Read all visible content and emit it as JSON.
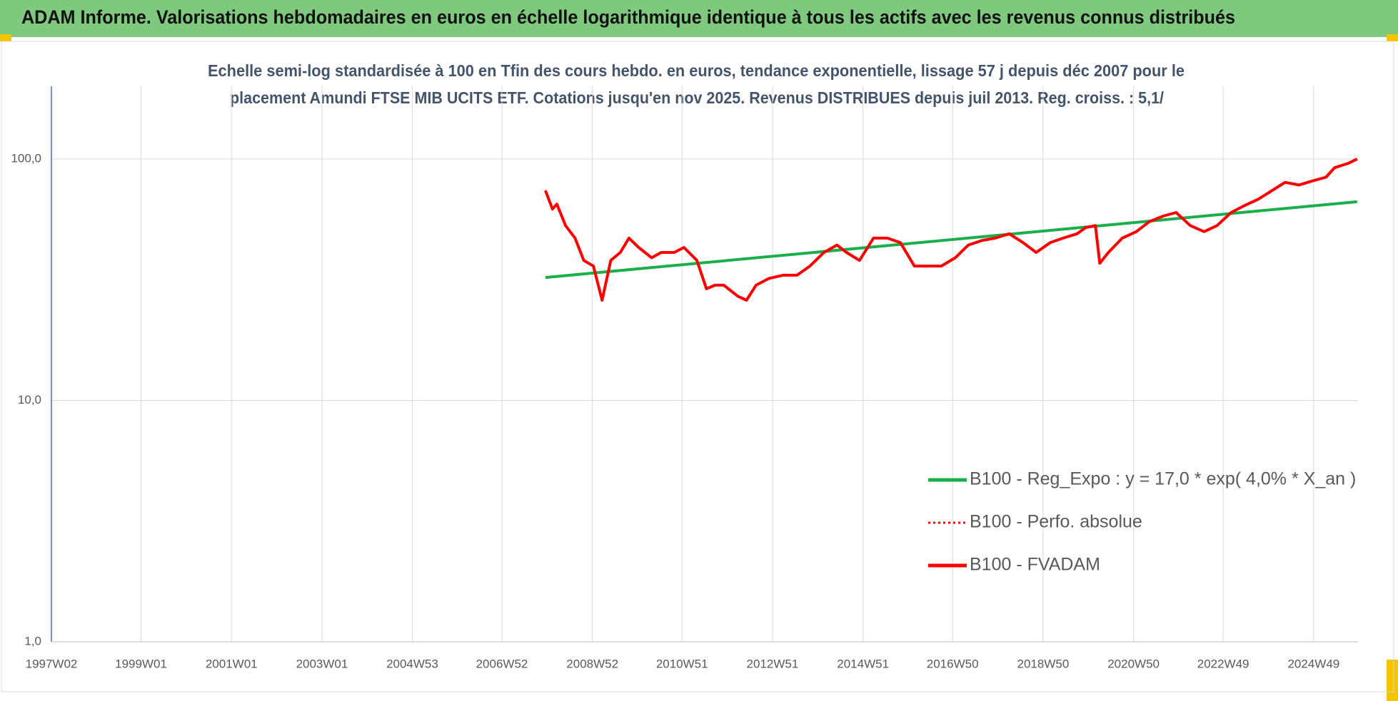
{
  "chart_data": {
    "type": "line",
    "title": "ADAM Informe. Valorisations hebdomadaires en euros en échelle logarithmique identique à tous les actifs avec les revenus connus distribués",
    "subtitle": [
      "Echelle semi-log standardisée à 100 en Tfin des cours hebdo. en euros, tendance exponentielle, lissage 57 j depuis déc 2007 pour le",
      "placement Amundi FTSE MIB UCITS ETF. Cotations jusqu'en nov 2025. Revenus DISTRIBUES depuis juil 2013. Reg. croiss. : 5,1/"
    ],
    "log_scale": true,
    "grid": true,
    "legend_position": "right",
    "xlim": [
      "1997W02",
      "2025W48"
    ],
    "xticks": [
      "1997W02",
      "1999W01",
      "2001W01",
      "2003W01",
      "2004W53",
      "2006W52",
      "2008W52",
      "2010W51",
      "2012W51",
      "2014W51",
      "2016W50",
      "2018W50",
      "2020W50",
      "2022W49",
      "2024W49"
    ],
    "ylim": [
      1,
      200
    ],
    "yticks": [
      {
        "value": 1,
        "label": "1,0"
      },
      {
        "value": 10,
        "label": "10,0"
      },
      {
        "value": 100,
        "label": "100,0"
      }
    ],
    "series": [
      {
        "name": "B100 - Reg_Expo : y = 17,0 * exp( 4,0% *  X_an )",
        "color": "#1aaf4b",
        "line_style": "solid",
        "x": [
          "2007W50",
          "2025W47"
        ],
        "values": [
          32.3,
          66.5
        ]
      },
      {
        "name": "B100 - Perfo. absolue",
        "color": "#ff0000",
        "line_style": "dotted",
        "x": [
          "2007W50",
          "2008W06",
          "2008W11",
          "2008W21",
          "2008W32",
          "2008W42",
          "2009W01",
          "2009W11",
          "2009W21",
          "2009W32",
          "2009W42",
          "2010W01",
          "2010W16",
          "2010W27",
          "2010W42",
          "2011W01",
          "2011W16",
          "2011W27",
          "2011W37",
          "2011W47",
          "2012W11",
          "2012W21",
          "2012W32",
          "2012W47",
          "2013W11",
          "2013W27",
          "2013W42",
          "2014W06",
          "2014W21",
          "2014W32",
          "2014W47",
          "2015W11",
          "2015W27",
          "2015W42",
          "2016W06",
          "2016W21",
          "2016W37",
          "2017W01",
          "2017W16",
          "2017W32",
          "2017W47",
          "2018W11",
          "2018W27",
          "2018W42",
          "2019W06",
          "2019W21",
          "2019W37",
          "2019W47",
          "2020W06",
          "2020W11",
          "2020W21",
          "2020W37",
          "2021W01",
          "2021W16",
          "2021W32",
          "2021W47",
          "2022W11",
          "2022W27",
          "2022W42",
          "2023W06",
          "2023W21",
          "2023W37",
          "2024W01",
          "2024W16",
          "2024W32",
          "2024W47",
          "2025W11",
          "2025W21",
          "2025W37",
          "2025W47"
        ],
        "values": [
          74,
          62,
          65,
          53,
          47,
          38,
          36,
          26,
          38,
          41,
          47,
          43,
          39,
          41,
          41,
          43,
          38,
          29,
          30,
          30,
          27,
          26,
          30,
          32,
          33,
          33,
          36,
          41,
          44,
          41,
          38,
          47,
          47,
          45,
          36,
          36,
          36,
          39,
          44,
          46,
          47,
          49,
          45,
          41,
          45,
          47,
          49,
          52,
          53,
          37,
          41,
          47,
          50,
          55,
          58,
          60,
          53,
          50,
          53,
          60,
          64,
          68,
          74,
          80,
          78,
          81,
          84,
          92,
          96,
          100
        ]
      },
      {
        "name": "B100 - FVADAM",
        "color": "#ff0000",
        "line_style": "solid",
        "x": [
          "2007W50",
          "2008W06",
          "2008W11",
          "2008W21",
          "2008W32",
          "2008W42",
          "2009W01",
          "2009W11",
          "2009W21",
          "2009W32",
          "2009W42",
          "2010W01",
          "2010W16",
          "2010W27",
          "2010W42",
          "2011W01",
          "2011W16",
          "2011W27",
          "2011W37",
          "2011W47",
          "2012W11",
          "2012W21",
          "2012W32",
          "2012W47",
          "2013W11",
          "2013W27",
          "2013W42",
          "2014W06",
          "2014W21",
          "2014W32",
          "2014W47",
          "2015W11",
          "2015W27",
          "2015W42",
          "2016W06",
          "2016W21",
          "2016W37",
          "2017W01",
          "2017W16",
          "2017W32",
          "2017W47",
          "2018W11",
          "2018W27",
          "2018W42",
          "2019W06",
          "2019W21",
          "2019W37",
          "2019W47",
          "2020W06",
          "2020W11",
          "2020W21",
          "2020W37",
          "2021W01",
          "2021W16",
          "2021W32",
          "2021W47",
          "2022W11",
          "2022W27",
          "2022W42",
          "2023W06",
          "2023W21",
          "2023W37",
          "2024W01",
          "2024W16",
          "2024W32",
          "2024W47",
          "2025W11",
          "2025W21",
          "2025W37",
          "2025W47"
        ],
        "values": [
          74,
          62,
          65,
          53,
          47,
          38,
          36,
          26,
          38,
          41,
          47,
          43,
          39,
          41,
          41,
          43,
          38,
          29,
          30,
          30,
          27,
          26,
          30,
          32,
          33,
          33,
          36,
          41,
          44,
          41,
          38,
          47,
          47,
          45,
          36,
          36,
          36,
          39,
          44,
          46,
          47,
          49,
          45,
          41,
          45,
          47,
          49,
          52,
          53,
          37,
          41,
          47,
          50,
          55,
          58,
          60,
          53,
          50,
          53,
          60,
          64,
          68,
          74,
          80,
          78,
          81,
          84,
          92,
          96,
          100
        ]
      }
    ]
  }
}
